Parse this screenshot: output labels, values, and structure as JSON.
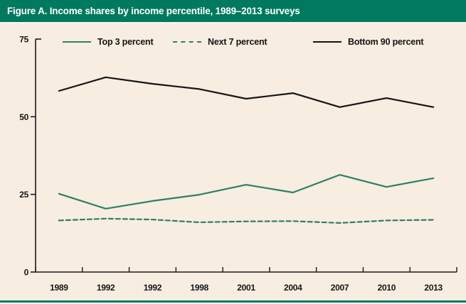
{
  "header": {
    "title": "Figure A. Income shares by income percentile, 1989–2013 surveys"
  },
  "colors": {
    "header_bg": "#00795E",
    "chart_bg": "#F7EDE1",
    "separator": "#FBF6EE",
    "green_line": "#2E7F66",
    "black_line": "#151515",
    "axis": "#1A1A1A"
  },
  "legend": {
    "items": [
      {
        "label": "Top 3 percent",
        "style": "solid",
        "color": "#2E7F66"
      },
      {
        "label": "Next 7 percent",
        "style": "dashed",
        "color": "#2E7F66"
      },
      {
        "label": "Bottom 90 percent",
        "style": "solid",
        "color": "#151515"
      }
    ]
  },
  "chart_data": {
    "type": "line",
    "title": "Figure A. Income shares by income percentile, 1989–2013 surveys",
    "categories": [
      "1989",
      "1992",
      "1992",
      "1998",
      "2001",
      "2004",
      "2007",
      "2010",
      "2013"
    ],
    "series": [
      {
        "name": "Top 3 percent",
        "color": "#2E7F66",
        "dash": "none",
        "values": [
          25.2,
          20.4,
          22.9,
          24.9,
          28.1,
          25.6,
          31.3,
          27.4,
          30.2
        ]
      },
      {
        "name": "Next 7 percent",
        "color": "#2E7F66",
        "dash": "6,4",
        "values": [
          16.6,
          17.2,
          16.9,
          16.0,
          16.3,
          16.4,
          15.8,
          16.6,
          16.8
        ]
      },
      {
        "name": "Bottom 90 percent",
        "color": "#151515",
        "dash": "none",
        "values": [
          58.3,
          62.7,
          60.6,
          58.9,
          55.8,
          57.6,
          53.1,
          56.0,
          53.1
        ]
      }
    ],
    "xlabel": "",
    "ylabel": "",
    "y_ticks": [
      0,
      25,
      50,
      75
    ],
    "ylim": [
      0,
      75
    ],
    "grid": false,
    "legend_position": "top"
  }
}
